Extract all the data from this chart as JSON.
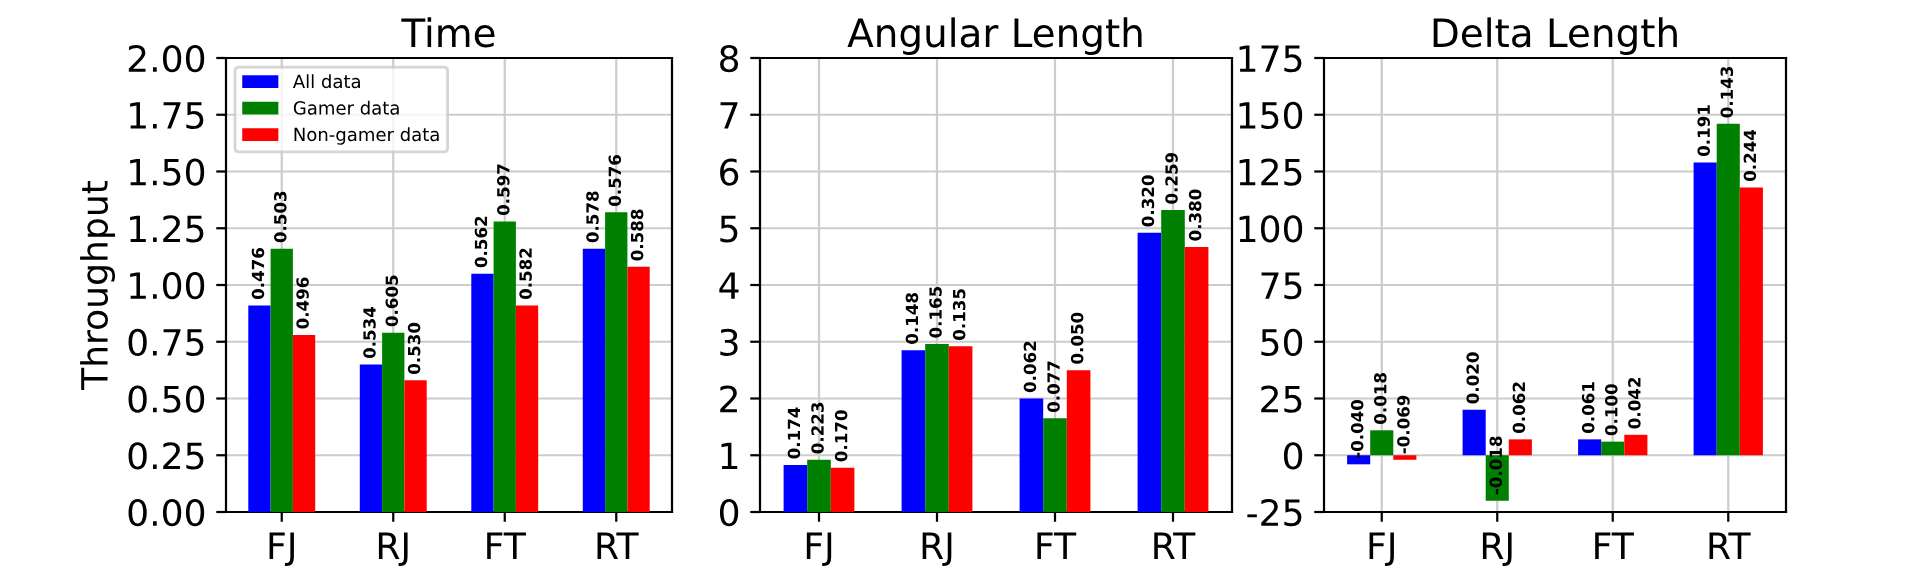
{
  "chart_data": [
    {
      "type": "bar",
      "title": "Time",
      "ylabel": "Throughput",
      "categories": [
        "FJ",
        "RJ",
        "FT",
        "RT"
      ],
      "ylim": [
        0,
        2
      ],
      "yticks": [
        {
          "value": 0,
          "label": "0.00"
        },
        {
          "value": 0.25,
          "label": "0.25"
        },
        {
          "value": 0.5,
          "label": "0.50"
        },
        {
          "value": 0.75,
          "label": "0.75"
        },
        {
          "value": 1,
          "label": "1.00"
        },
        {
          "value": 1.25,
          "label": "1.25"
        },
        {
          "value": 1.5,
          "label": "1.50"
        },
        {
          "value": 1.75,
          "label": "1.75"
        },
        {
          "value": 2,
          "label": "2.00"
        }
      ],
      "grid": true,
      "legend": "top left",
      "series": [
        {
          "name": "All data",
          "color": "#0000ff",
          "values": [
            0.91,
            0.65,
            1.05,
            1.16
          ]
        },
        {
          "name": "Gamer data",
          "color": "#008000",
          "values": [
            1.16,
            0.79,
            1.28,
            1.32
          ]
        },
        {
          "name": "Non-gamer data",
          "color": "#ff0000",
          "values": [
            0.78,
            0.58,
            0.91,
            1.08
          ]
        }
      ],
      "annotations": [
        "0.476",
        "0.534",
        "0.562",
        "0.578",
        "0.503",
        "0.605",
        "0.597",
        "0.576",
        "0.496",
        "0.530",
        "0.582",
        "0.588"
      ]
    },
    {
      "type": "bar",
      "title": "Angular Length",
      "categories": [
        "FJ",
        "RJ",
        "FT",
        "RT"
      ],
      "ylim": [
        0,
        8
      ],
      "yticks": [
        0,
        1,
        2,
        3,
        4,
        5,
        6,
        7,
        8
      ],
      "grid": true,
      "series": [
        {
          "color": "#0000ff",
          "values": [
            0.83,
            2.85,
            2.0,
            4.92
          ]
        },
        {
          "color": "#008000",
          "values": [
            0.92,
            2.96,
            1.65,
            5.32
          ]
        },
        {
          "color": "#ff0000",
          "values": [
            0.78,
            2.92,
            2.5,
            4.67
          ]
        }
      ],
      "annotations": [
        "0.174",
        "0.148",
        "0.062",
        "0.320",
        "0.223",
        "0.165",
        "0.077",
        "0.259",
        "0.170",
        "0.135",
        "0.050",
        "0.380"
      ]
    },
    {
      "type": "bar",
      "title": "Delta Length",
      "categories": [
        "FJ",
        "RJ",
        "FT",
        "RT"
      ],
      "ylim": [
        -25,
        175
      ],
      "yticks": [
        -25,
        0,
        25,
        50,
        75,
        100,
        125,
        150,
        175
      ],
      "grid": true,
      "series": [
        {
          "color": "#0000ff",
          "values": [
            -4,
            20,
            7,
            129
          ]
        },
        {
          "color": "#008000",
          "values": [
            11,
            -20,
            6,
            146
          ]
        },
        {
          "color": "#ff0000",
          "values": [
            -2,
            7,
            9,
            118
          ]
        }
      ],
      "annotations": [
        "-0.040",
        "0.020",
        "0.061",
        "0.191",
        "0.018",
        "-0.018",
        "0.100",
        "0.143",
        "-0.069",
        "0.062",
        "0.042",
        "0.244"
      ]
    }
  ]
}
